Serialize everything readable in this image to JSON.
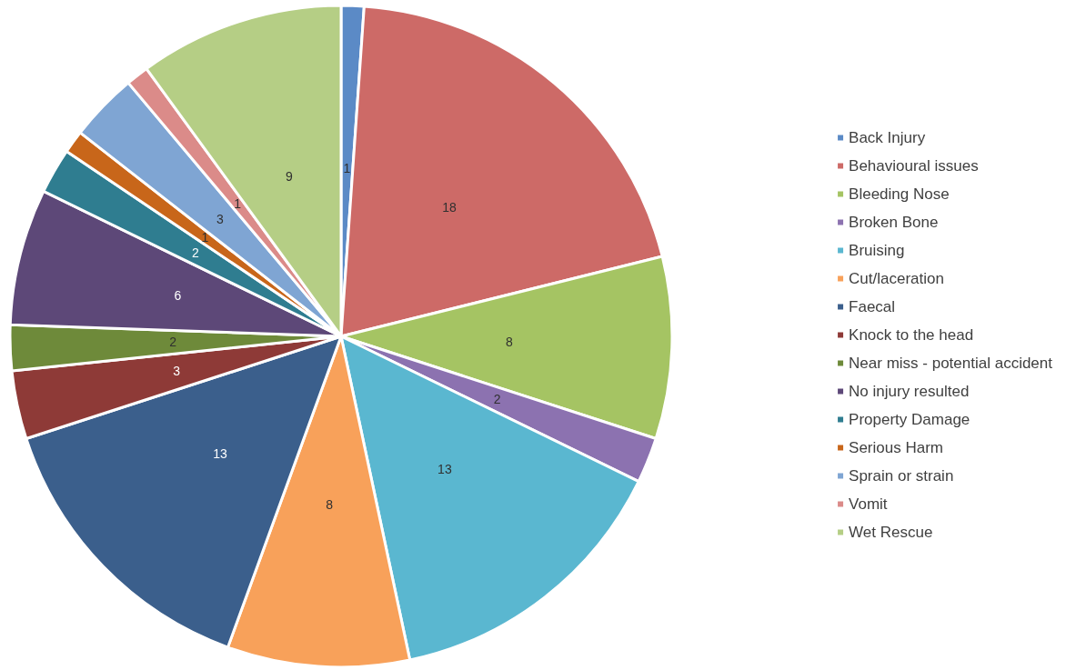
{
  "chart_data": {
    "type": "pie",
    "categories": [
      "Back Injury",
      "Behavioural issues",
      "Bleeding Nose",
      "Broken Bone",
      "Bruising",
      "Cut/laceration",
      "Faecal",
      "Knock to the head",
      "Near miss - potential accident",
      "No injury resulted",
      "Property Damage",
      "Serious Harm",
      "Sprain or strain",
      "Vomit",
      "Wet Rescue"
    ],
    "values": [
      1,
      18,
      8,
      2,
      13,
      8,
      13,
      3,
      2,
      6,
      2,
      1,
      3,
      1,
      9
    ],
    "colors": [
      "#5b8ac6",
      "#cd6a67",
      "#a5c463",
      "#8c72b0",
      "#5ab7d0",
      "#f8a15a",
      "#3b5f8c",
      "#8e3a37",
      "#6e8a3a",
      "#5d4878",
      "#2f7d90",
      "#c8661a",
      "#7fa5d3",
      "#db8b89",
      "#b5ce85"
    ],
    "data_labels": true,
    "legend": "right"
  }
}
